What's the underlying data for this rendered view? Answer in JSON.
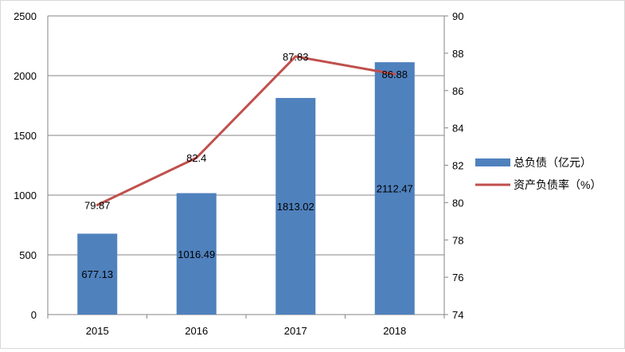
{
  "chart_data": {
    "type": "bar",
    "categories": [
      "2015",
      "2016",
      "2017",
      "2018"
    ],
    "series": [
      {
        "name": "总负债（亿元）",
        "type": "bar",
        "axis": "left",
        "color": "#4f81bd",
        "values": [
          677.13,
          1016.49,
          1813.02,
          2112.47
        ],
        "labels": [
          "677.13",
          "1016.49",
          "1813.02",
          "2112.47"
        ]
      },
      {
        "name": "资产负债率（%）",
        "type": "line",
        "axis": "right",
        "color": "#c0504d",
        "values": [
          79.87,
          82.4,
          87.83,
          86.88
        ],
        "labels": [
          "79.87",
          "82.4",
          "87.83",
          "86.88"
        ]
      }
    ],
    "y_left": {
      "min": 0,
      "max": 2500,
      "ticks": [
        "0",
        "500",
        "1000",
        "1500",
        "2000",
        "2500"
      ]
    },
    "y_right": {
      "min": 74,
      "max": 90,
      "ticks": [
        "74",
        "76",
        "78",
        "80",
        "82",
        "84",
        "86",
        "88",
        "90"
      ]
    },
    "grid": true,
    "legend_position": "right"
  }
}
